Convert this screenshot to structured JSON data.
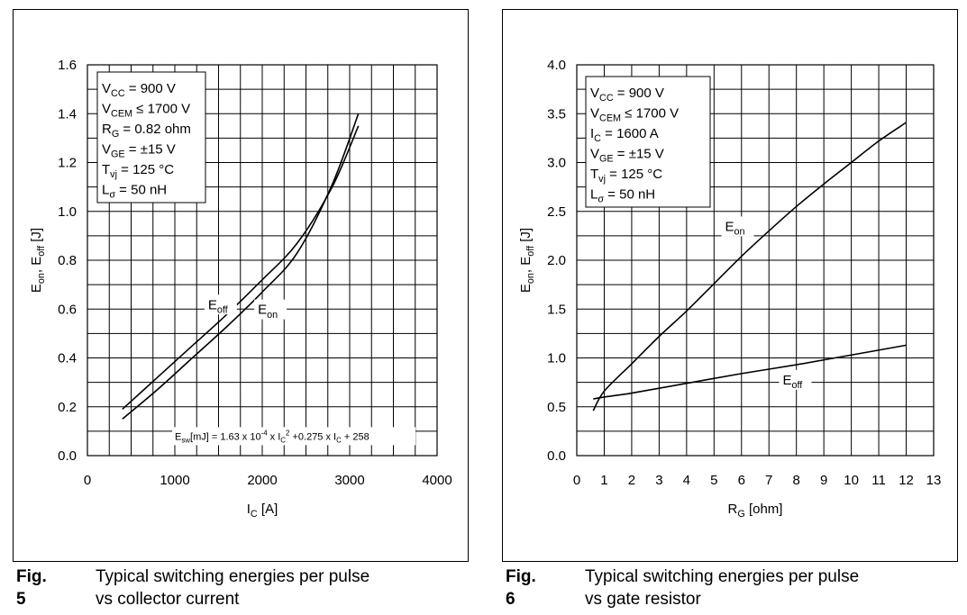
{
  "charts": [
    {
      "id": "fig5",
      "caption_num": "Fig. 5",
      "caption_line1": "Typical switching energies per pulse",
      "caption_line2": "vs collector current",
      "param_lines": [
        {
          "pre": "V",
          "sub": "CC",
          "post": " = 900 V"
        },
        {
          "pre": "V",
          "sub": "CEM",
          "post": " ≤ 1700 V"
        },
        {
          "pre": "R",
          "sub": "G",
          "post": " = 0.82 ohm"
        },
        {
          "pre": "V",
          "sub": "GE",
          "post": " = ±15 V"
        },
        {
          "pre": "T",
          "sub": "vj",
          "post": " = 125 °C"
        },
        {
          "pre": "L",
          "sub": "σ",
          "post": " = 50 nH"
        }
      ],
      "formula": "E_sw[mJ] = 1.63 x 10^-4 x I_C^2 +0.275 x I_C + 258",
      "formula_parts": {
        "a": "E",
        "a_sub": "sw",
        "b": "[mJ] = 1.63 x 10",
        "b_sup": "-4",
        "c": " x I",
        "c_sub": "C",
        "c_sup": "2",
        "d": " +0.275 x I",
        "d_sub": "C",
        "e": " + 258"
      }
    },
    {
      "id": "fig6",
      "caption_num": "Fig. 6",
      "caption_line1": "Typical switching energies per pulse",
      "caption_line2": "vs gate resistor",
      "param_lines": [
        {
          "pre": "V",
          "sub": "CC",
          "post": " = 900 V"
        },
        {
          "pre": "V",
          "sub": "CEM",
          "post": " ≤ 1700 V"
        },
        {
          "pre": "I",
          "sub": "C",
          "post": " = 1600 A"
        },
        {
          "pre": "V",
          "sub": "GE",
          "post": " = ±15 V"
        },
        {
          "pre": "T",
          "sub": "vj",
          "post": " = 125 °C"
        },
        {
          "pre": "L",
          "sub": "σ",
          "post": " = 50 nH"
        }
      ]
    }
  ],
  "chart_data": [
    {
      "type": "line",
      "xlabel": "I_C [A]",
      "xlabel_parts": {
        "pre": "I",
        "sub": "C",
        "post": " [A]"
      },
      "ylabel": "E_on, E_off [J]",
      "ylabel_parts": {
        "a": "E",
        "a_sub": "on",
        "b": ", E",
        "b_sub": "off",
        "c": " [J]"
      },
      "xlim": [
        0,
        4000
      ],
      "ylim": [
        0,
        1.6
      ],
      "x_ticks": [
        0,
        1000,
        2000,
        3000,
        4000
      ],
      "x_tick_labels": [
        "0",
        "1000",
        "2000",
        "3000",
        "4000"
      ],
      "y_ticks": [
        0,
        0.2,
        0.4,
        0.6,
        0.8,
        1.0,
        1.2,
        1.4,
        1.6
      ],
      "y_tick_labels": [
        "0.0",
        "0.2",
        "0.4",
        "0.6",
        "0.8",
        "1.0",
        "1.2",
        "1.4",
        "1.6"
      ],
      "grid": true,
      "series": [
        {
          "name": "E_off",
          "label_main": "E",
          "label_sub": "off",
          "label_at": [
            1380,
            0.6
          ],
          "x": [
            400,
            800,
            1200,
            1600,
            2000,
            2400,
            2800,
            3100
          ],
          "y": [
            0.19,
            0.32,
            0.45,
            0.58,
            0.72,
            0.87,
            1.1,
            1.35
          ]
        },
        {
          "name": "E_on",
          "label_main": "E",
          "label_sub": "on",
          "label_at": [
            1950,
            0.58
          ],
          "x": [
            400,
            800,
            1200,
            1600,
            2000,
            2400,
            2800,
            3100
          ],
          "y": [
            0.15,
            0.27,
            0.4,
            0.53,
            0.67,
            0.83,
            1.11,
            1.4
          ]
        }
      ]
    },
    {
      "type": "line",
      "xlabel": "R_G [ohm]",
      "xlabel_parts": {
        "pre": "R",
        "sub": "G",
        "post": " [ohm]"
      },
      "ylabel": "E_on, E_off [J]",
      "ylabel_parts": {
        "a": "E",
        "a_sub": "on",
        "b": ", E",
        "b_sub": "off",
        "c": " [J]"
      },
      "xlim": [
        0,
        13
      ],
      "ylim": [
        0,
        4.0
      ],
      "x_ticks": [
        0,
        1,
        2,
        3,
        4,
        5,
        6,
        7,
        8,
        9,
        10,
        11,
        12,
        13
      ],
      "x_tick_labels": [
        "0",
        "1",
        "2",
        "3",
        "4",
        "5",
        "6",
        "7",
        "8",
        "9",
        "10",
        "11",
        "12",
        "13"
      ],
      "y_ticks": [
        0,
        0.5,
        1.0,
        1.5,
        2.0,
        2.5,
        3.0,
        3.5,
        4.0
      ],
      "y_tick_labels": [
        "0.0",
        "0.5",
        "1.0",
        "1.5",
        "2.0",
        "2.5",
        "3.0",
        "3.5",
        "4.0"
      ],
      "grid": true,
      "series": [
        {
          "name": "E_on",
          "label_main": "E",
          "label_sub": "on",
          "label_at": [
            5.4,
            2.3
          ],
          "x": [
            0.6,
            1,
            2,
            3,
            4,
            5,
            6,
            7,
            8,
            9,
            10,
            11,
            12
          ],
          "y": [
            0.46,
            0.66,
            0.94,
            1.22,
            1.48,
            1.76,
            2.04,
            2.3,
            2.55,
            2.78,
            3.0,
            3.22,
            3.41
          ]
        },
        {
          "name": "E_off",
          "label_main": "E",
          "label_sub": "off",
          "label_at": [
            7.5,
            0.73
          ],
          "x": [
            0.6,
            1,
            2,
            4,
            6,
            8,
            10,
            12
          ],
          "y": [
            0.58,
            0.6,
            0.64,
            0.74,
            0.84,
            0.93,
            1.03,
            1.13
          ]
        }
      ]
    }
  ]
}
